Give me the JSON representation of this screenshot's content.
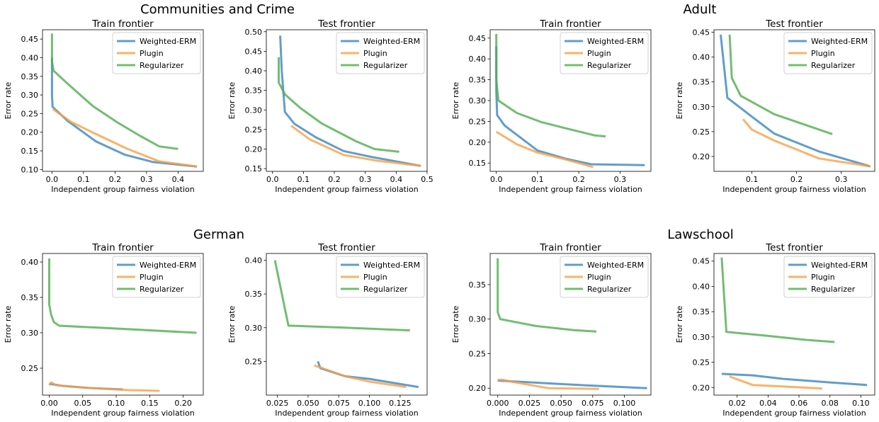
{
  "figure": {
    "group_titles": [
      "Communities and Crime",
      "Adult",
      "German",
      "Lawschool"
    ]
  },
  "colors": {
    "Weighted-ERM": "#3a85c0",
    "Plugin": "#f7a045",
    "Regularizer": "#4fac4f"
  },
  "chart_data": [
    {
      "type": "line",
      "dataset": "Communities and Crime",
      "title": "Train frontier",
      "xlabel": "Independent group fairness violation",
      "ylabel": "Error rate",
      "xlim": [
        -0.03,
        0.48
      ],
      "ylim": [
        0.095,
        0.475
      ],
      "xticks": [
        0.0,
        0.1,
        0.2,
        0.3,
        0.4
      ],
      "xtick_labels": [
        "0.0",
        "0.1",
        "0.2",
        "0.3",
        "0.4"
      ],
      "yticks": [
        0.1,
        0.15,
        0.2,
        0.25,
        0.3,
        0.35,
        0.4,
        0.45
      ],
      "ytick_labels": [
        "0.10",
        "0.15",
        "0.20",
        "0.25",
        "0.30",
        "0.35",
        "0.40",
        "0.45"
      ],
      "legend_position": "top-right",
      "series": [
        {
          "name": "Weighted-ERM",
          "points": [
            [
              0.0,
              0.4
            ],
            [
              0.0,
              0.3
            ],
            [
              0.002,
              0.268
            ],
            [
              0.05,
              0.23
            ],
            [
              0.14,
              0.175
            ],
            [
              0.23,
              0.14
            ],
            [
              0.32,
              0.12
            ],
            [
              0.46,
              0.108
            ]
          ]
        },
        {
          "name": "Plugin",
          "points": [
            [
              0.003,
              0.262
            ],
            [
              0.06,
              0.228
            ],
            [
              0.14,
              0.195
            ],
            [
              0.24,
              0.155
            ],
            [
              0.34,
              0.122
            ],
            [
              0.46,
              0.108
            ]
          ]
        },
        {
          "name": "Regularizer",
          "points": [
            [
              0.0,
              0.465
            ],
            [
              0.0,
              0.39
            ],
            [
              0.005,
              0.365
            ],
            [
              0.05,
              0.33
            ],
            [
              0.13,
              0.27
            ],
            [
              0.21,
              0.225
            ],
            [
              0.28,
              0.19
            ],
            [
              0.34,
              0.162
            ],
            [
              0.4,
              0.155
            ]
          ]
        }
      ]
    },
    {
      "type": "line",
      "dataset": "Communities and Crime",
      "title": "Test frontier",
      "xlabel": "Independent group fairness violation",
      "ylabel": "Error rate",
      "xlim": [
        -0.02,
        0.5
      ],
      "ylim": [
        0.143,
        0.505
      ],
      "xticks": [
        0.0,
        0.1,
        0.2,
        0.3,
        0.4,
        0.5
      ],
      "xtick_labels": [
        "0.0",
        "0.1",
        "0.2",
        "0.3",
        "0.4",
        "0.5"
      ],
      "yticks": [
        0.15,
        0.2,
        0.25,
        0.3,
        0.35,
        0.4,
        0.45,
        0.5
      ],
      "ytick_labels": [
        "0.15",
        "0.20",
        "0.25",
        "0.30",
        "0.35",
        "0.40",
        "0.45",
        "0.50"
      ],
      "legend_position": "top-right",
      "series": [
        {
          "name": "Weighted-ERM",
          "points": [
            [
              0.025,
              0.49
            ],
            [
              0.03,
              0.4
            ],
            [
              0.04,
              0.295
            ],
            [
              0.07,
              0.265
            ],
            [
              0.14,
              0.23
            ],
            [
              0.23,
              0.195
            ],
            [
              0.32,
              0.18
            ],
            [
              0.48,
              0.157
            ]
          ]
        },
        {
          "name": "Plugin",
          "points": [
            [
              0.06,
              0.26
            ],
            [
              0.12,
              0.225
            ],
            [
              0.23,
              0.185
            ],
            [
              0.34,
              0.17
            ],
            [
              0.48,
              0.157
            ]
          ]
        },
        {
          "name": "Regularizer",
          "points": [
            [
              0.02,
              0.435
            ],
            [
              0.02,
              0.37
            ],
            [
              0.04,
              0.34
            ],
            [
              0.09,
              0.305
            ],
            [
              0.16,
              0.265
            ],
            [
              0.27,
              0.22
            ],
            [
              0.33,
              0.2
            ],
            [
              0.41,
              0.193
            ]
          ]
        }
      ]
    },
    {
      "type": "line",
      "dataset": "Adult",
      "title": "Train frontier",
      "xlabel": "Independent group fairness violation",
      "ylabel": "Error rate",
      "xlim": [
        -0.015,
        0.375
      ],
      "ylim": [
        0.13,
        0.47
      ],
      "xticks": [
        0.0,
        0.1,
        0.2,
        0.3
      ],
      "xtick_labels": [
        "0.0",
        "0.1",
        "0.2",
        "0.3"
      ],
      "yticks": [
        0.15,
        0.2,
        0.25,
        0.3,
        0.35,
        0.4,
        0.45
      ],
      "ytick_labels": [
        "0.15",
        "0.20",
        "0.25",
        "0.30",
        "0.35",
        "0.40",
        "0.45"
      ],
      "legend_position": "top-right",
      "series": [
        {
          "name": "Weighted-ERM",
          "points": [
            [
              0.0,
              0.43
            ],
            [
              0.0,
              0.32
            ],
            [
              0.002,
              0.265
            ],
            [
              0.02,
              0.24
            ],
            [
              0.1,
              0.18
            ],
            [
              0.17,
              0.16
            ],
            [
              0.23,
              0.147
            ],
            [
              0.36,
              0.145
            ]
          ]
        },
        {
          "name": "Plugin",
          "points": [
            [
              0.0,
              0.225
            ],
            [
              0.05,
              0.195
            ],
            [
              0.1,
              0.175
            ],
            [
              0.17,
              0.158
            ],
            [
              0.235,
              0.14
            ]
          ]
        },
        {
          "name": "Regularizer",
          "points": [
            [
              0.0,
              0.46
            ],
            [
              0.0,
              0.35
            ],
            [
              0.005,
              0.3
            ],
            [
              0.05,
              0.27
            ],
            [
              0.11,
              0.248
            ],
            [
              0.17,
              0.233
            ],
            [
              0.24,
              0.216
            ],
            [
              0.265,
              0.214
            ]
          ]
        }
      ]
    },
    {
      "type": "line",
      "dataset": "Adult",
      "title": "Test frontier",
      "xlabel": "Independent group fairness violation",
      "ylabel": "Error rate",
      "xlim": [
        0.015,
        0.375
      ],
      "ylim": [
        0.17,
        0.455
      ],
      "xticks": [
        0.1,
        0.2,
        0.3
      ],
      "xtick_labels": [
        "0.1",
        "0.2",
        "0.3"
      ],
      "yticks": [
        0.2,
        0.25,
        0.3,
        0.35,
        0.4,
        0.45
      ],
      "ytick_labels": [
        "0.20",
        "0.25",
        "0.30",
        "0.35",
        "0.40",
        "0.45"
      ],
      "legend_position": "top-right",
      "series": [
        {
          "name": "Weighted-ERM",
          "points": [
            [
              0.03,
              0.445
            ],
            [
              0.045,
              0.318
            ],
            [
              0.1,
              0.28
            ],
            [
              0.15,
              0.246
            ],
            [
              0.25,
              0.21
            ],
            [
              0.365,
              0.18
            ]
          ]
        },
        {
          "name": "Plugin",
          "points": [
            [
              0.08,
              0.275
            ],
            [
              0.1,
              0.254
            ],
            [
              0.15,
              0.232
            ],
            [
              0.25,
              0.196
            ],
            [
              0.365,
              0.18
            ]
          ]
        },
        {
          "name": "Regularizer",
          "points": [
            [
              0.05,
              0.445
            ],
            [
              0.055,
              0.358
            ],
            [
              0.075,
              0.322
            ],
            [
              0.15,
              0.285
            ],
            [
              0.28,
              0.245
            ]
          ]
        }
      ]
    },
    {
      "type": "line",
      "dataset": "German",
      "title": "Train frontier",
      "xlabel": "Independent group fairness violation",
      "ylabel": "Error rate",
      "xlim": [
        -0.01,
        0.23
      ],
      "ylim": [
        0.212,
        0.412
      ],
      "xticks": [
        0.0,
        0.05,
        0.1,
        0.15,
        0.2
      ],
      "xtick_labels": [
        "0.00",
        "0.05",
        "0.10",
        "0.15",
        "0.20"
      ],
      "yticks": [
        0.25,
        0.3,
        0.35,
        0.4
      ],
      "ytick_labels": [
        "0.25",
        "0.30",
        "0.35",
        "0.40"
      ],
      "legend_position": "top-right",
      "series": [
        {
          "name": "Weighted-ERM",
          "points": [
            [
              0.0,
              0.228
            ],
            [
              0.02,
              0.225
            ],
            [
              0.06,
              0.222
            ],
            [
              0.11,
              0.22
            ]
          ]
        },
        {
          "name": "Plugin",
          "points": [
            [
              0.0,
              0.226
            ],
            [
              0.003,
              0.23
            ],
            [
              0.01,
              0.226
            ],
            [
              0.06,
              0.222
            ],
            [
              0.12,
              0.219
            ],
            [
              0.165,
              0.218
            ]
          ]
        },
        {
          "name": "Regularizer",
          "points": [
            [
              0.0,
              0.405
            ],
            [
              0.0,
              0.34
            ],
            [
              0.003,
              0.325
            ],
            [
              0.007,
              0.315
            ],
            [
              0.015,
              0.31
            ],
            [
              0.1,
              0.306
            ],
            [
              0.22,
              0.3
            ]
          ]
        }
      ]
    },
    {
      "type": "line",
      "dataset": "German",
      "title": "Test frontier",
      "xlabel": "Independent group fairness violation",
      "ylabel": "Error rate",
      "xlim": [
        0.016,
        0.147
      ],
      "ylim": [
        0.2,
        0.41
      ],
      "xticks": [
        0.025,
        0.05,
        0.075,
        0.1,
        0.125
      ],
      "xtick_labels": [
        "0.025",
        "0.050",
        "0.075",
        "0.100",
        "0.125"
      ],
      "yticks": [
        0.25,
        0.3,
        0.35,
        0.4
      ],
      "ytick_labels": [
        "0.25",
        "0.30",
        "0.35",
        "0.40"
      ],
      "legend_position": "top-right",
      "series": [
        {
          "name": "Weighted-ERM",
          "points": [
            [
              0.058,
              0.25
            ],
            [
              0.06,
              0.24
            ],
            [
              0.08,
              0.228
            ],
            [
              0.1,
              0.224
            ],
            [
              0.12,
              0.218
            ],
            [
              0.14,
              0.212
            ]
          ]
        },
        {
          "name": "Plugin",
          "points": [
            [
              0.055,
              0.244
            ],
            [
              0.06,
              0.241
            ],
            [
              0.08,
              0.228
            ],
            [
              0.1,
              0.22
            ],
            [
              0.13,
              0.212
            ]
          ]
        },
        {
          "name": "Regularizer",
          "points": [
            [
              0.023,
              0.4
            ],
            [
              0.034,
              0.303
            ],
            [
              0.08,
              0.3
            ],
            [
              0.133,
              0.296
            ]
          ]
        }
      ]
    },
    {
      "type": "line",
      "dataset": "Lawschool",
      "title": "Train frontier",
      "xlabel": "Independent group fairness violation",
      "ylabel": "Error rate",
      "xlim": [
        -0.006,
        0.121
      ],
      "ylim": [
        0.19,
        0.395
      ],
      "xticks": [
        0.0,
        0.025,
        0.05,
        0.075,
        0.1
      ],
      "xtick_labels": [
        "0.000",
        "0.025",
        "0.050",
        "0.075",
        "0.100"
      ],
      "yticks": [
        0.2,
        0.25,
        0.3,
        0.35
      ],
      "ytick_labels": [
        "0.20",
        "0.25",
        "0.30",
        "0.35"
      ],
      "legend_position": "top-right",
      "series": [
        {
          "name": "Weighted-ERM",
          "points": [
            [
              0.0,
              0.211
            ],
            [
              0.03,
              0.208
            ],
            [
              0.07,
              0.204
            ],
            [
              0.118,
              0.2
            ]
          ]
        },
        {
          "name": "Plugin",
          "points": [
            [
              0.0,
              0.212
            ],
            [
              0.004,
              0.212
            ],
            [
              0.015,
              0.208
            ],
            [
              0.04,
              0.2
            ],
            [
              0.08,
              0.199
            ]
          ]
        },
        {
          "name": "Regularizer",
          "points": [
            [
              0.0,
              0.388
            ],
            [
              0.0,
              0.31
            ],
            [
              0.002,
              0.3
            ],
            [
              0.03,
              0.29
            ],
            [
              0.06,
              0.284
            ],
            [
              0.078,
              0.282
            ]
          ]
        }
      ]
    },
    {
      "type": "line",
      "dataset": "Lawschool",
      "title": "Test frontier",
      "xlabel": "Independent group fairness violation",
      "ylabel": "Error rate",
      "xlim": [
        0.005,
        0.109
      ],
      "ylim": [
        0.185,
        0.465
      ],
      "xticks": [
        0.02,
        0.04,
        0.06,
        0.08,
        0.1
      ],
      "xtick_labels": [
        "0.02",
        "0.04",
        "0.06",
        "0.08",
        "0.10"
      ],
      "yticks": [
        0.2,
        0.25,
        0.3,
        0.35,
        0.4,
        0.45
      ],
      "ytick_labels": [
        "0.20",
        "0.25",
        "0.30",
        "0.35",
        "0.40",
        "0.45"
      ],
      "legend_position": "top-right",
      "series": [
        {
          "name": "Weighted-ERM",
          "points": [
            [
              0.01,
              0.227
            ],
            [
              0.03,
              0.224
            ],
            [
              0.05,
              0.217
            ],
            [
              0.08,
              0.21
            ],
            [
              0.104,
              0.205
            ]
          ]
        },
        {
          "name": "Plugin",
          "points": [
            [
              0.015,
              0.222
            ],
            [
              0.03,
              0.205
            ],
            [
              0.05,
              0.202
            ],
            [
              0.075,
              0.198
            ]
          ]
        },
        {
          "name": "Regularizer",
          "points": [
            [
              0.01,
              0.457
            ],
            [
              0.013,
              0.31
            ],
            [
              0.04,
              0.302
            ],
            [
              0.065,
              0.294
            ],
            [
              0.083,
              0.29
            ]
          ]
        }
      ]
    }
  ]
}
